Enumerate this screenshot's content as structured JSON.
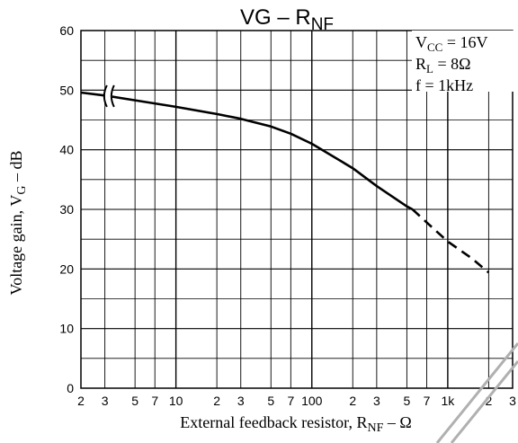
{
  "chart_data": {
    "type": "line",
    "title": {
      "main": "VG – R",
      "sub": "NF"
    },
    "xlabel": {
      "main": "External feedback resistor, R",
      "sub": "NF",
      "unit": " – Ω"
    },
    "ylabel": {
      "main": "Voltage gain, V",
      "sub": "G",
      "unit": " – dB"
    },
    "x_scale": "log",
    "xlim": [
      2,
      3000
    ],
    "ylim": [
      0,
      60
    ],
    "grid": true,
    "y_ticks": [
      "0",
      "10",
      "20",
      "30",
      "40",
      "50",
      "60"
    ],
    "x_ticks": [
      {
        "value": 2,
        "label": "2"
      },
      {
        "value": 3,
        "label": "3"
      },
      {
        "value": 5,
        "label": "5"
      },
      {
        "value": 7,
        "label": "7"
      },
      {
        "value": 10,
        "label": "10"
      },
      {
        "value": 20,
        "label": "2"
      },
      {
        "value": 30,
        "label": "3"
      },
      {
        "value": 50,
        "label": "5"
      },
      {
        "value": 70,
        "label": "7"
      },
      {
        "value": 100,
        "label": "100"
      },
      {
        "value": 200,
        "label": "2"
      },
      {
        "value": 300,
        "label": "3"
      },
      {
        "value": 500,
        "label": "5"
      },
      {
        "value": 700,
        "label": "7"
      },
      {
        "value": 1000,
        "label": "1k"
      },
      {
        "value": 2000,
        "label": "2"
      },
      {
        "value": 3000,
        "label": "3"
      }
    ],
    "conditions": [
      {
        "main": "V",
        "sub": "CC",
        "rest": " = 16V"
      },
      {
        "main": "R",
        "sub": "L",
        "rest": " = 8Ω"
      },
      {
        "main": "f = 1kHz",
        "sub": "",
        "rest": ""
      }
    ],
    "series": [
      {
        "style": "solid",
        "x": [
          2,
          3,
          5,
          10,
          20,
          30,
          50,
          70,
          100,
          200,
          300,
          500,
          550
        ],
        "y": [
          49.6,
          49.1,
          48.3,
          47.2,
          46.0,
          45.2,
          43.9,
          42.7,
          41.0,
          36.9,
          33.9,
          30.5,
          30.0
        ]
      },
      {
        "style": "dashed",
        "x": [
          550,
          700,
          1000,
          1500,
          2000
        ],
        "y": [
          30.0,
          27.8,
          24.6,
          21.8,
          19.4
        ]
      }
    ],
    "axis_break_at_x": 3.2
  }
}
